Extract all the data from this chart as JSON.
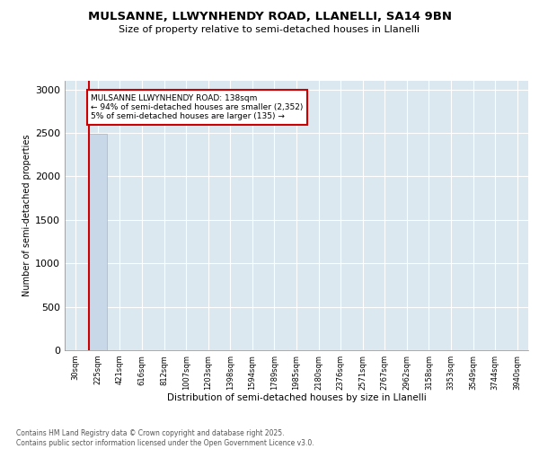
{
  "title_line1": "MULSANNE, LLWYNHENDY ROAD, LLANELLI, SA14 9BN",
  "title_line2": "Size of property relative to semi-detached houses in Llanelli",
  "xlabel": "Distribution of semi-detached houses by size in Llanelli",
  "ylabel": "Number of semi-detached properties",
  "categories": [
    "30sqm",
    "225sqm",
    "421sqm",
    "616sqm",
    "812sqm",
    "1007sqm",
    "1203sqm",
    "1398sqm",
    "1594sqm",
    "1789sqm",
    "1985sqm",
    "2180sqm",
    "2376sqm",
    "2571sqm",
    "2767sqm",
    "2962sqm",
    "3158sqm",
    "3353sqm",
    "3549sqm",
    "3744sqm",
    "3940sqm"
  ],
  "values": [
    2,
    2487,
    2,
    1,
    1,
    1,
    1,
    1,
    1,
    1,
    1,
    1,
    1,
    1,
    1,
    1,
    1,
    1,
    1,
    1,
    1
  ],
  "bar_color": "#c8d8e8",
  "bar_edge_color": "#a0b8cc",
  "vline_color": "#cc0000",
  "annotation_text_line1": "MULSANNE LLWYNHENDY ROAD: 138sqm",
  "annotation_text_line2": "← 94% of semi-detached houses are smaller (2,352)",
  "annotation_text_line3": "5% of semi-detached houses are larger (135) →",
  "annotation_box_color": "#cc0000",
  "ylim": [
    0,
    3100
  ],
  "yticks": [
    0,
    500,
    1000,
    1500,
    2000,
    2500,
    3000
  ],
  "background_color": "#ffffff",
  "plot_bg_color": "#dce8f0",
  "footer_line1": "Contains HM Land Registry data © Crown copyright and database right 2025.",
  "footer_line2": "Contains public sector information licensed under the Open Government Licence v3.0.",
  "grid_color": "#ffffff"
}
